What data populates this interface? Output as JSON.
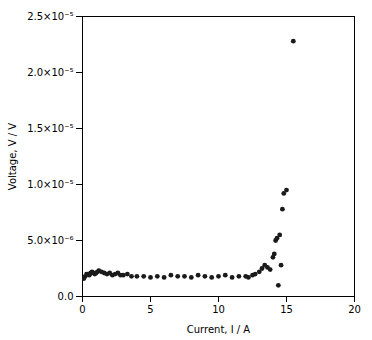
{
  "chart_data": {
    "type": "scatter",
    "x": [
      0.1,
      0.2,
      0.3,
      0.4,
      0.5,
      0.6,
      0.7,
      0.8,
      0.9,
      1.0,
      1.1,
      1.2,
      1.4,
      1.6,
      1.8,
      2.0,
      2.2,
      2.4,
      2.6,
      2.8,
      3.0,
      3.3,
      3.6,
      4.0,
      4.5,
      5.0,
      5.5,
      6.0,
      6.5,
      7.0,
      7.5,
      8.0,
      8.5,
      9.0,
      9.5,
      10.0,
      10.5,
      11.0,
      11.5,
      12.0,
      12.2,
      12.5,
      12.7,
      13.0,
      13.2,
      13.4,
      13.6,
      13.8,
      14.0,
      14.1,
      14.2,
      14.3,
      14.4,
      14.5,
      14.6,
      14.7,
      14.8,
      15.0,
      15.5
    ],
    "values": [
      1.6e-06,
      1.8e-06,
      2e-06,
      2e-06,
      1.9e-06,
      2.1e-06,
      2.2e-06,
      2.1e-06,
      2e-06,
      2.1e-06,
      2.2e-06,
      2.3e-06,
      2.2e-06,
      2.1e-06,
      2e-06,
      2.1e-06,
      1.9e-06,
      2e-06,
      2.1e-06,
      1.9e-06,
      1.9e-06,
      2e-06,
      1.8e-06,
      1.8e-06,
      1.8e-06,
      1.7e-06,
      1.8e-06,
      1.7e-06,
      1.9e-06,
      1.8e-06,
      1.8e-06,
      1.7e-06,
      1.9e-06,
      1.8e-06,
      1.7e-06,
      1.8e-06,
      1.9e-06,
      1.7e-06,
      1.8e-06,
      1.8e-06,
      1.7e-06,
      1.9e-06,
      2e-06,
      2.2e-06,
      2.5e-06,
      2.8e-06,
      2.6e-06,
      2.4e-06,
      3.5e-06,
      3.8e-06,
      5e-06,
      5.2e-06,
      1e-06,
      5.5e-06,
      2.8e-06,
      7.8e-06,
      9.2e-06,
      9.5e-06,
      2.28e-05
    ],
    "color": "#1a1a1a",
    "xlabel": "Current, I / A",
    "ylabel": "Voltage, V / V",
    "xlim": [
      0,
      20
    ],
    "ylim": [
      0,
      2.5e-05
    ],
    "xticks": [
      0,
      5,
      10,
      15,
      20
    ],
    "yticks": [
      {
        "value": 0.0,
        "label": "0.0"
      },
      {
        "value": 5e-06,
        "label": "5.0×10⁻⁶"
      },
      {
        "value": 1e-05,
        "label": "1.0×10⁻⁵"
      },
      {
        "value": 1.5e-05,
        "label": "1.5×10⁻⁵"
      },
      {
        "value": 2e-05,
        "label": "2.0×10⁻⁵"
      },
      {
        "value": 2.5e-05,
        "label": "2.5×10⁻⁵"
      }
    ],
    "grid": false
  }
}
